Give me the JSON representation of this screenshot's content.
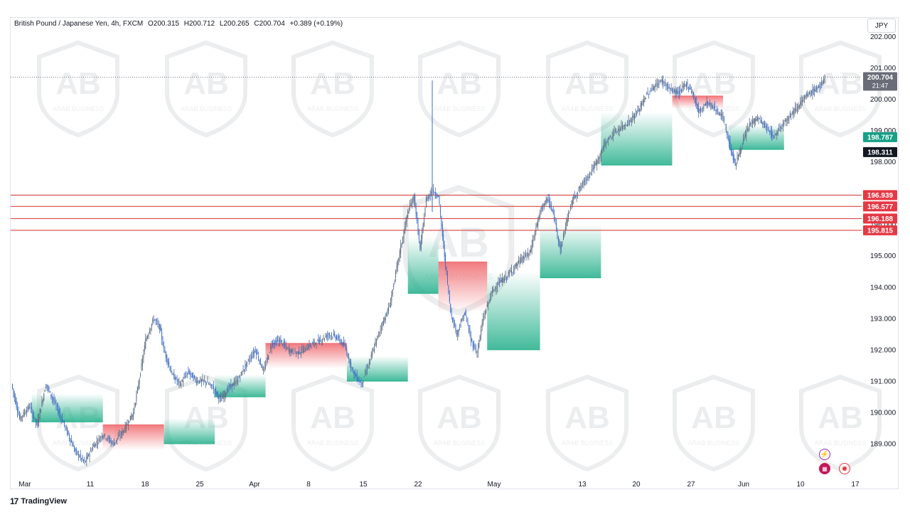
{
  "header": {
    "symbol": "British Pound / Japanese Yen, 4h, FXCM",
    "open": "O200.315",
    "high": "H200.712",
    "low": "L200.265",
    "close": "C200.704",
    "change": "+0.389 (+0.19%)"
  },
  "currency": "JPY",
  "brand": "TradingView",
  "watermark_text": "ARAB BUSINESS",
  "colors": {
    "up": "#5b6b82",
    "down": "#3d6cc4",
    "level_line": "#d32f2f",
    "label_red": "#e53945",
    "label_green": "#16a085",
    "label_dark": "#131722",
    "label_gray": "#6a6d78",
    "cloud_green": "#2db38f",
    "cloud_red": "#f06d72"
  },
  "price_labels": {
    "last": "200.704",
    "countdown": "21:47",
    "green": "198.787",
    "dark": "198.311"
  },
  "chart_data": {
    "type": "candlestick",
    "y_ticks": [
      "189.000",
      "190.000",
      "191.000",
      "192.000",
      "193.000",
      "194.000",
      "195.000",
      "196.000",
      "197.000",
      "198.000",
      "199.000",
      "200.000",
      "201.000",
      "202.000"
    ],
    "y_range": [
      188.0,
      202.6
    ],
    "x_ticks": [
      "Mar",
      "11",
      "18",
      "25",
      "Apr",
      "8",
      "15",
      "22",
      "May",
      "13",
      "20",
      "27",
      "Jun",
      "10",
      "17"
    ],
    "horizontal_levels": [
      {
        "label": "196.939",
        "value": 196.939
      },
      {
        "label": "196.577",
        "value": 196.577
      },
      {
        "label": "196.188",
        "value": 196.188
      },
      {
        "label": "195.815",
        "value": 195.815
      }
    ],
    "last_price": 200.704,
    "path_anchors": [
      [
        0,
        190.9
      ],
      [
        8,
        189.8
      ],
      [
        18,
        190.2
      ],
      [
        25,
        189.6
      ],
      [
        34,
        190.9
      ],
      [
        44,
        190.2
      ],
      [
        52,
        189.6
      ],
      [
        62,
        188.8
      ],
      [
        72,
        188.4
      ],
      [
        80,
        188.9
      ],
      [
        90,
        189.3
      ],
      [
        100,
        189.0
      ],
      [
        110,
        189.4
      ],
      [
        120,
        190.0
      ],
      [
        126,
        191.1
      ],
      [
        132,
        192.3
      ],
      [
        140,
        193.0
      ],
      [
        146,
        192.7
      ],
      [
        150,
        192.0
      ],
      [
        158,
        191.2
      ],
      [
        166,
        190.9
      ],
      [
        174,
        191.3
      ],
      [
        182,
        191.0
      ],
      [
        190,
        191.0
      ],
      [
        198,
        190.8
      ],
      [
        206,
        190.4
      ],
      [
        214,
        190.8
      ],
      [
        222,
        191.0
      ],
      [
        232,
        191.6
      ],
      [
        240,
        192.0
      ],
      [
        248,
        191.3
      ],
      [
        256,
        192.2
      ],
      [
        264,
        192.3
      ],
      [
        272,
        192.0
      ],
      [
        280,
        191.9
      ],
      [
        288,
        192.0
      ],
      [
        296,
        192.2
      ],
      [
        304,
        192.3
      ],
      [
        312,
        192.5
      ],
      [
        320,
        192.4
      ],
      [
        328,
        192.1
      ],
      [
        336,
        191.3
      ],
      [
        344,
        190.9
      ],
      [
        352,
        191.6
      ],
      [
        362,
        192.6
      ],
      [
        372,
        193.4
      ],
      [
        380,
        194.8
      ],
      [
        390,
        196.4
      ],
      [
        396,
        196.9
      ],
      [
        402,
        195.2
      ],
      [
        408,
        196.8
      ],
      [
        414,
        197.1
      ],
      [
        420,
        196.9
      ],
      [
        426,
        195.0
      ],
      [
        432,
        193.2
      ],
      [
        438,
        192.5
      ],
      [
        446,
        193.2
      ],
      [
        452,
        192.3
      ],
      [
        458,
        191.9
      ],
      [
        464,
        193.0
      ],
      [
        472,
        193.8
      ],
      [
        478,
        194.1
      ],
      [
        486,
        194.3
      ],
      [
        494,
        194.6
      ],
      [
        502,
        194.9
      ],
      [
        510,
        195.1
      ],
      [
        516,
        195.9
      ],
      [
        522,
        196.6
      ],
      [
        528,
        196.8
      ],
      [
        534,
        196.2
      ],
      [
        540,
        195.2
      ],
      [
        546,
        196.1
      ],
      [
        552,
        196.8
      ],
      [
        560,
        197.2
      ],
      [
        568,
        197.6
      ],
      [
        576,
        198.0
      ],
      [
        584,
        198.6
      ],
      [
        592,
        198.9
      ],
      [
        600,
        199.1
      ],
      [
        608,
        199.3
      ],
      [
        616,
        199.6
      ],
      [
        624,
        200.1
      ],
      [
        632,
        200.4
      ],
      [
        640,
        200.6
      ],
      [
        648,
        200.3
      ],
      [
        656,
        200.2
      ],
      [
        664,
        200.5
      ],
      [
        670,
        200.2
      ],
      [
        676,
        199.6
      ],
      [
        684,
        199.9
      ],
      [
        692,
        199.7
      ],
      [
        700,
        199.4
      ],
      [
        706,
        198.6
      ],
      [
        712,
        197.9
      ],
      [
        718,
        198.5
      ],
      [
        726,
        199.2
      ],
      [
        734,
        199.4
      ],
      [
        742,
        199.1
      ],
      [
        750,
        198.8
      ],
      [
        758,
        199.2
      ],
      [
        766,
        199.5
      ],
      [
        774,
        199.8
      ],
      [
        782,
        200.1
      ],
      [
        790,
        200.3
      ],
      [
        798,
        200.5
      ],
      [
        800,
        200.7
      ]
    ]
  }
}
